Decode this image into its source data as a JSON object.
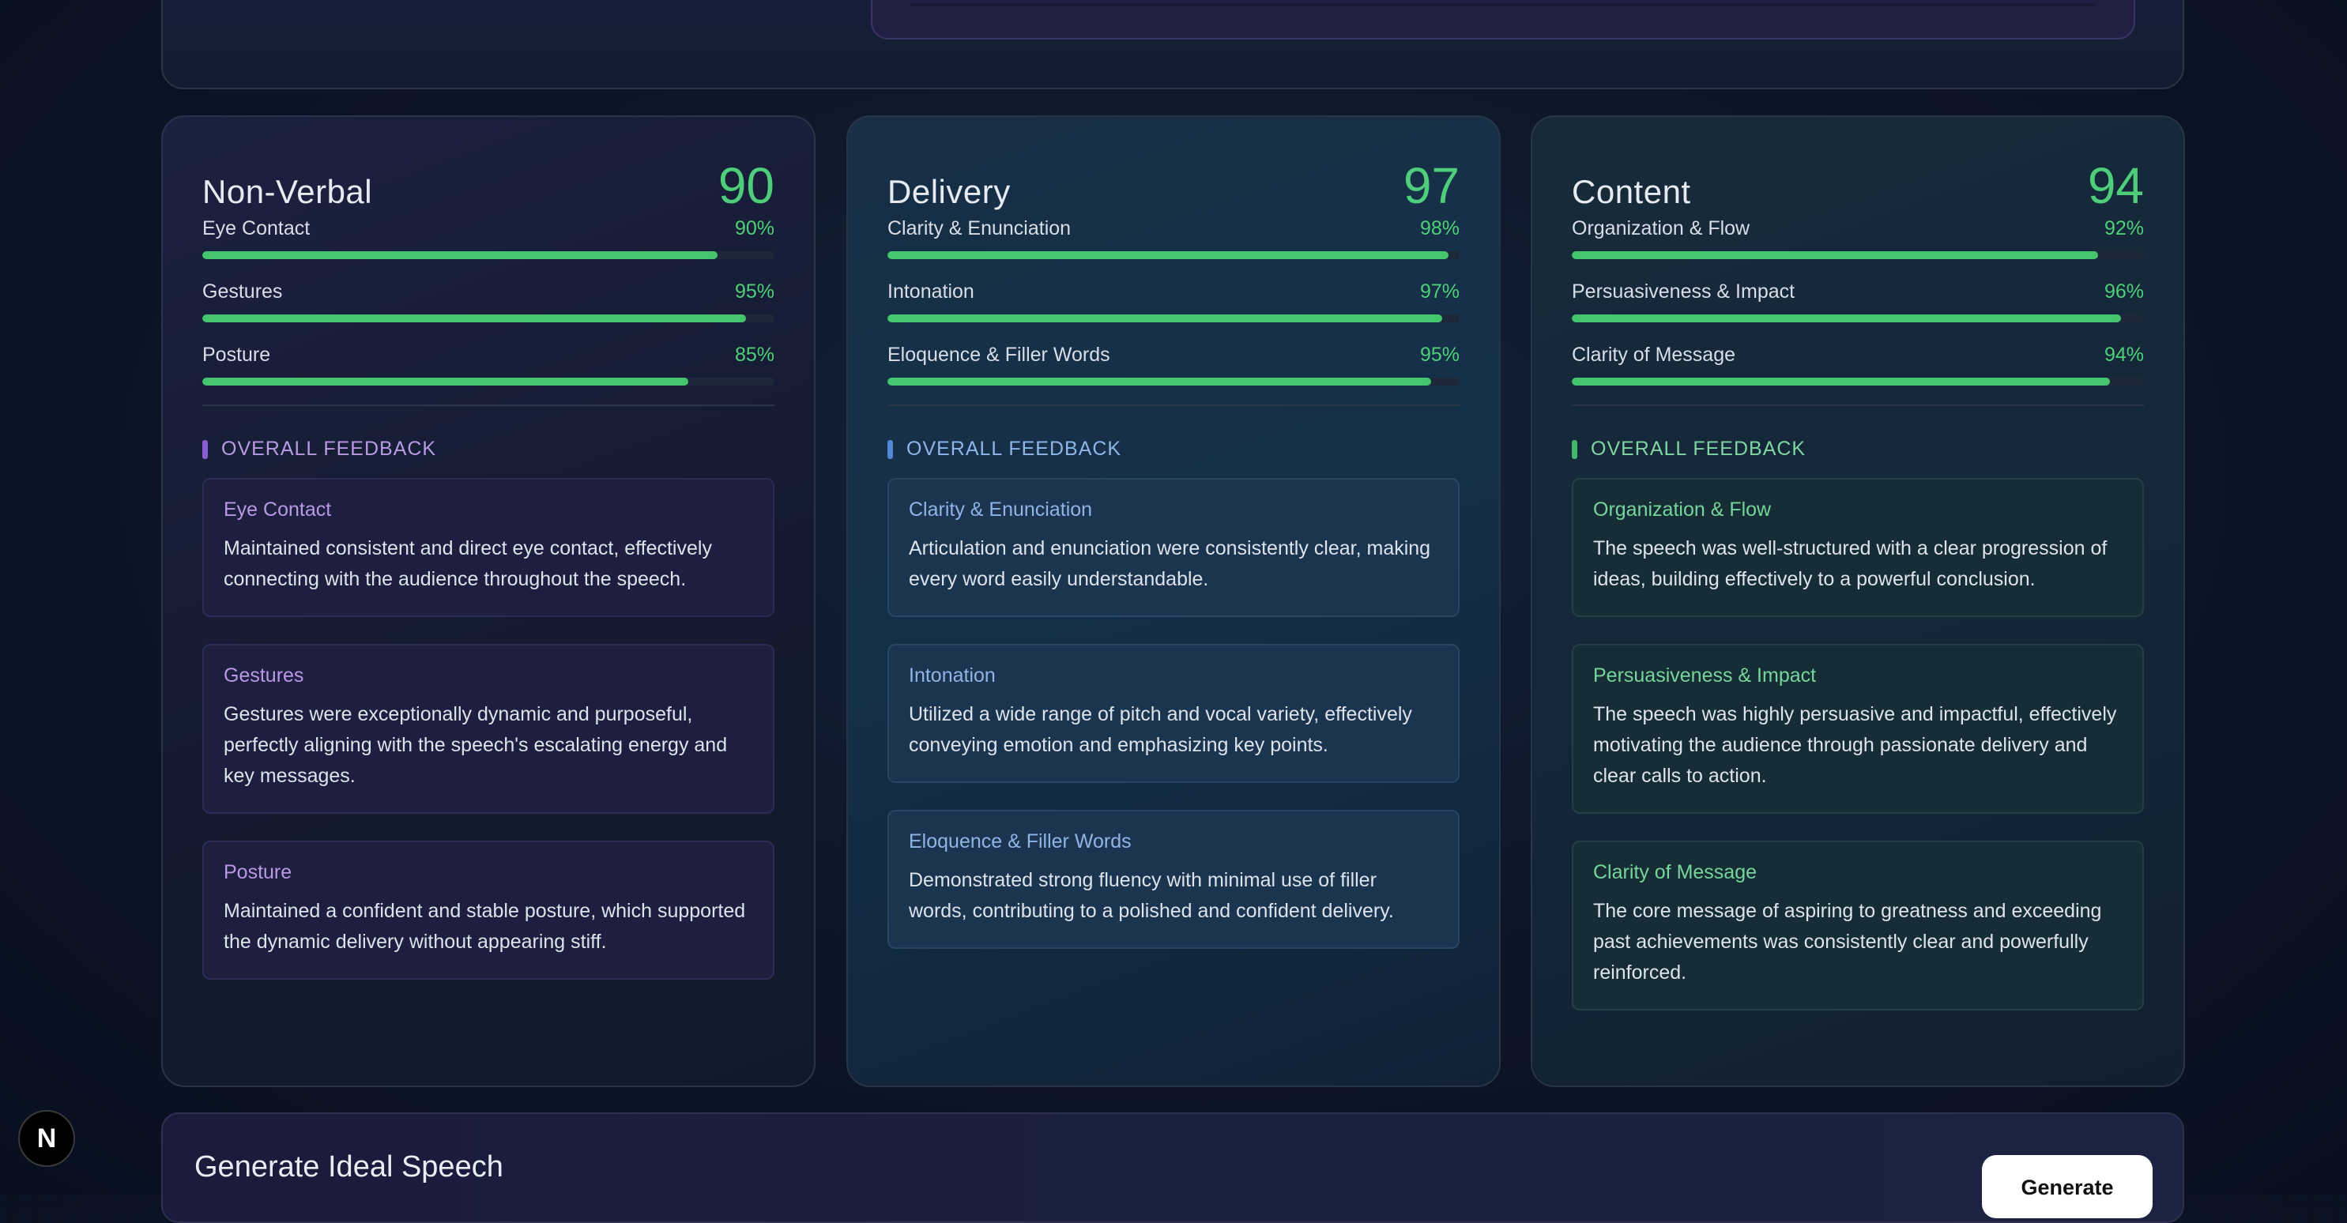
{
  "cards": [
    {
      "title": "Non-Verbal",
      "score": "90",
      "metrics": [
        {
          "label": "Eye Contact",
          "pct": "90%",
          "value": 90
        },
        {
          "label": "Gestures",
          "pct": "95%",
          "value": 95
        },
        {
          "label": "Posture",
          "pct": "85%",
          "value": 85
        }
      ],
      "feedback_heading": "OVERALL FEEDBACK",
      "feedback": [
        {
          "title": "Eye Contact",
          "text": "Maintained consistent and direct eye contact, effectively connecting with the audience throughout the speech."
        },
        {
          "title": "Gestures",
          "text": "Gestures were exceptionally dynamic and purposeful, perfectly aligning with the speech's escalating energy and key messages."
        },
        {
          "title": "Posture",
          "text": "Maintained a confident and stable posture, which supported the dynamic delivery without appearing stiff."
        }
      ]
    },
    {
      "title": "Delivery",
      "score": "97",
      "metrics": [
        {
          "label": "Clarity & Enunciation",
          "pct": "98%",
          "value": 98
        },
        {
          "label": "Intonation",
          "pct": "97%",
          "value": 97
        },
        {
          "label": "Eloquence & Filler Words",
          "pct": "95%",
          "value": 95
        }
      ],
      "feedback_heading": "OVERALL FEEDBACK",
      "feedback": [
        {
          "title": "Clarity & Enunciation",
          "text": "Articulation and enunciation were consistently clear, making every word easily understandable."
        },
        {
          "title": "Intonation",
          "text": "Utilized a wide range of pitch and vocal variety, effectively conveying emotion and emphasizing key points."
        },
        {
          "title": "Eloquence & Filler Words",
          "text": "Demonstrated strong fluency with minimal use of filler words, contributing to a polished and confident delivery."
        }
      ]
    },
    {
      "title": "Content",
      "score": "94",
      "metrics": [
        {
          "label": "Organization & Flow",
          "pct": "92%",
          "value": 92
        },
        {
          "label": "Persuasiveness & Impact",
          "pct": "96%",
          "value": 96
        },
        {
          "label": "Clarity of Message",
          "pct": "94%",
          "value": 94
        }
      ],
      "feedback_heading": "OVERALL FEEDBACK",
      "feedback": [
        {
          "title": "Organization & Flow",
          "text": "The speech was well-structured with a clear progression of ideas, building effectively to a powerful conclusion."
        },
        {
          "title": "Persuasiveness & Impact",
          "text": "The speech was highly persuasive and impactful, effectively motivating the audience through passionate delivery and clear calls to action."
        },
        {
          "title": "Clarity of Message",
          "text": "The core message of aspiring to greatness and exceeding past achievements was consistently clear and powerfully reinforced."
        }
      ]
    }
  ],
  "bottom": {
    "title": "Generate Ideal Speech",
    "button_label": "Generate"
  },
  "badge": {
    "letter": "N",
    "icon": "nextjs-logo-icon"
  },
  "colors": {
    "accent_green": "#4ece7a",
    "bar_fill": "#45c56d",
    "purple_marker": "#8b5cd6",
    "blue_marker": "#4f86d6",
    "green_marker": "#43b86a"
  }
}
